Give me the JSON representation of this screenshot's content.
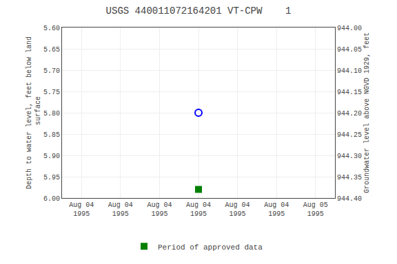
{
  "chart_data": {
    "type": "scatter",
    "title": "USGS 440011072164201 VT-CPW    1",
    "y_label": "Depth to water level, feet below land\n surface",
    "y2_label": "Groundwater level above NGVD 1929, feet",
    "categories": [
      "Aug 04\n1995",
      "Aug 04\n1995",
      "Aug 04\n1995",
      "Aug 04\n1995",
      "Aug 04\n1995",
      "Aug 04\n1995",
      "Aug 05\n1995"
    ],
    "series": [
      {
        "color": "#0000ff",
        "marker": "circle-open",
        "values": [
          null,
          null,
          null,
          5.8,
          null,
          null,
          null
        ]
      },
      {
        "name": "Period of approved data",
        "color": "#008000",
        "marker": "square",
        "values": [
          null,
          null,
          null,
          5.98,
          null,
          null,
          null
        ]
      }
    ],
    "ylim": [
      6.0,
      5.6
    ],
    "yticks": [
      {
        "value": 5.6,
        "label": "5.60"
      },
      5.65,
      {
        "value": 5.7,
        "label": "5.70"
      },
      5.75,
      {
        "value": 5.8,
        "label": "5.80"
      },
      5.85,
      {
        "value": 5.9,
        "label": "5.90"
      },
      5.95,
      {
        "value": 6.0,
        "label": "6.00"
      }
    ],
    "y2lim": [
      944.4,
      944.0
    ],
    "y2ticks": [
      {
        "value": 944.4,
        "label": "944.40"
      },
      944.35,
      {
        "value": 944.3,
        "label": "944.30"
      },
      944.25,
      {
        "value": 944.2,
        "label": "944.20"
      },
      944.15,
      {
        "value": 944.1,
        "label": "944.10"
      },
      944.05,
      {
        "value": 944.0,
        "label": "944.00"
      }
    ],
    "grid": true,
    "legend": "bottom"
  }
}
